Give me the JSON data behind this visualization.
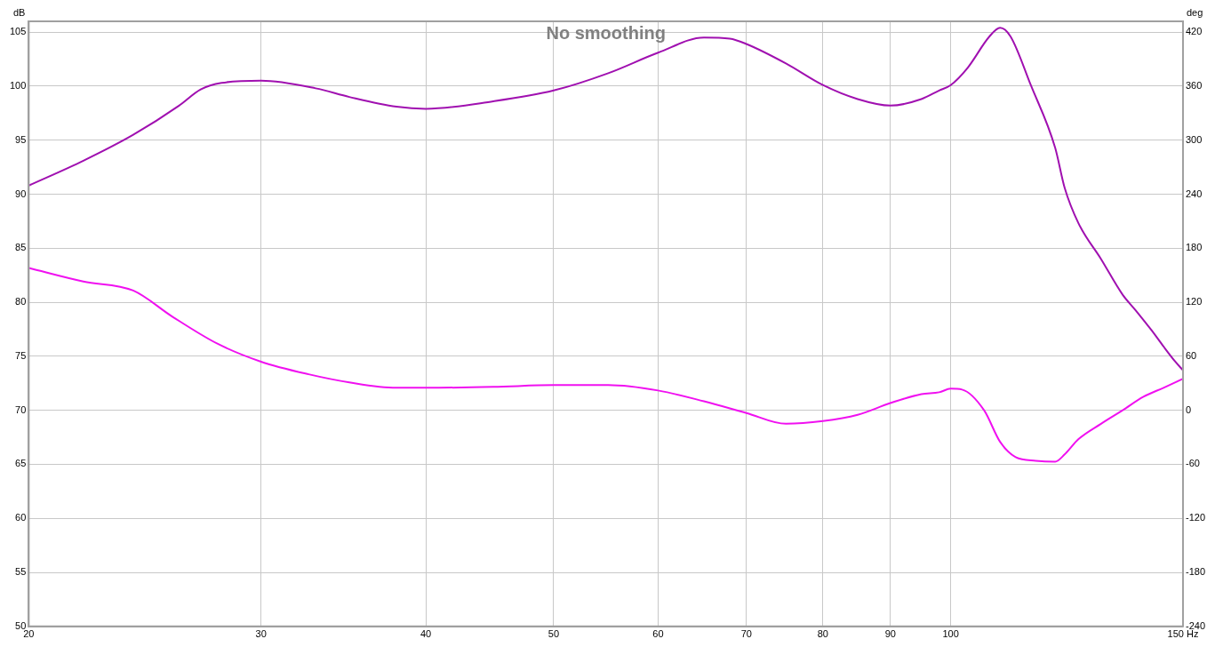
{
  "chart_data": {
    "type": "line",
    "title": "No smoothing",
    "ylabel": "dB",
    "y2label": "deg",
    "x": [
      20,
      22,
      24,
      26,
      27,
      28,
      30,
      33,
      35,
      38,
      40,
      45,
      50,
      55,
      60,
      65,
      68,
      70,
      75,
      80,
      85,
      90,
      95,
      98,
      100,
      103,
      107,
      109,
      111,
      115,
      120,
      122,
      125,
      130,
      135,
      138,
      142,
      145,
      148,
      150
    ],
    "series": [
      {
        "color": "#a010b0",
        "values": [
          90.8,
          93.1,
          95.5,
          98.2,
          99.7,
          100.3,
          100.5,
          99.8,
          99.0,
          98.1,
          97.9,
          98.6,
          99.6,
          101.2,
          103.1,
          104.5,
          104.4,
          103.9,
          102.1,
          100.1,
          98.8,
          98.2,
          98.8,
          99.6,
          100.1,
          101.7,
          104.6,
          105.4,
          104.6,
          100.1,
          94.3,
          90.6,
          87.3,
          84.0,
          80.7,
          79.3,
          77.4,
          75.9,
          74.5,
          73.7
        ]
      },
      {
        "color": "#f010f0",
        "axis": "y2",
        "x": [
          20,
          22,
          24,
          25.7,
          27.8,
          30,
          32.6,
          35,
          38,
          40,
          45,
          50,
          55,
          60,
          65,
          70,
          75,
          80,
          85,
          90,
          95,
          98,
          100,
          102,
          106,
          109,
          112,
          116,
          120,
          122,
          125,
          130,
          135,
          140,
          145,
          150
        ],
        "values": [
          158,
          143,
          133,
          104,
          74,
          54,
          40,
          31,
          25,
          25,
          26,
          28,
          28,
          22,
          10,
          -3,
          -15,
          -12,
          -5,
          8,
          18,
          20,
          24,
          23,
          0,
          -35,
          -52,
          -56,
          -57,
          -49,
          -32,
          -15,
          0,
          15,
          25,
          35
        ]
      }
    ],
    "xlim": [
      20,
      150
    ],
    "xticks": [
      20,
      30,
      40,
      50,
      60,
      70,
      80,
      90,
      100,
      {
        "value": 150,
        "label": "150 Hz"
      }
    ],
    "ylim": [
      50,
      106
    ],
    "yticks": [
      50,
      55,
      60,
      65,
      70,
      75,
      80,
      85,
      90,
      95,
      100,
      105
    ],
    "y2lim": [
      -240,
      432
    ],
    "y2ticks": [
      -240,
      -180,
      -120,
      -60,
      0,
      60,
      120,
      180,
      240,
      300,
      360,
      420
    ],
    "log": "x",
    "grid": true,
    "legend": false,
    "marker": "none",
    "line_style": "solid"
  }
}
